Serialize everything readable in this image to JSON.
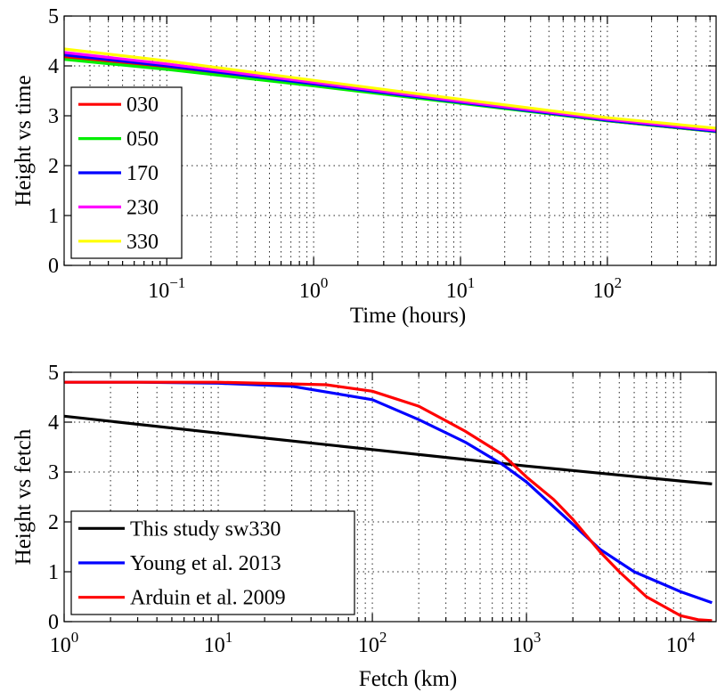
{
  "chart_data": [
    {
      "type": "line",
      "title": "",
      "xlabel": "Time (hours)",
      "ylabel": "Height vs time",
      "xscale": "log",
      "xlim": [
        0.02,
        550
      ],
      "ylim": [
        0,
        5
      ],
      "grid": true,
      "legend_position": "bottom-left",
      "x_ticks": [
        0.1,
        1,
        10,
        100
      ],
      "x_tick_labels": [
        {
          "base": "10",
          "exp": "−1"
        },
        {
          "base": "10",
          "exp": "0"
        },
        {
          "base": "10",
          "exp": "1"
        },
        {
          "base": "10",
          "exp": "2"
        }
      ],
      "y_ticks": [
        0,
        1,
        2,
        3,
        4,
        5
      ],
      "y_tick_labels": [
        "0",
        "1",
        "2",
        "3",
        "4",
        "5"
      ],
      "series": [
        {
          "name": "030",
          "color": "#ff0000",
          "x": [
            0.02,
            0.1,
            1,
            10,
            100,
            550
          ],
          "y": [
            4.18,
            3.97,
            3.62,
            3.26,
            2.9,
            2.68
          ]
        },
        {
          "name": "050",
          "color": "#00ee00",
          "x": [
            0.02,
            0.1,
            1,
            10,
            100,
            550
          ],
          "y": [
            4.13,
            3.93,
            3.6,
            3.25,
            2.9,
            2.68
          ]
        },
        {
          "name": "170",
          "color": "#0000ff",
          "x": [
            0.02,
            0.1,
            1,
            10,
            100,
            550
          ],
          "y": [
            4.22,
            4.0,
            3.64,
            3.27,
            2.91,
            2.69
          ]
        },
        {
          "name": "230",
          "color": "#ff00ff",
          "x": [
            0.02,
            0.1,
            1,
            10,
            100,
            550
          ],
          "y": [
            4.27,
            4.04,
            3.67,
            3.29,
            2.93,
            2.71
          ]
        },
        {
          "name": "330",
          "color": "#ffff00",
          "x": [
            0.02,
            0.1,
            1,
            10,
            100,
            550
          ],
          "y": [
            4.34,
            4.1,
            3.71,
            3.33,
            2.96,
            2.75
          ]
        }
      ]
    },
    {
      "type": "line",
      "title": "",
      "xlabel": "Fetch (km)",
      "ylabel": "Height vs fetch",
      "xscale": "log",
      "xlim": [
        1,
        17000
      ],
      "ylim": [
        0,
        5
      ],
      "grid": true,
      "legend_position": "bottom-left",
      "x_ticks": [
        1,
        10,
        100,
        1000,
        10000
      ],
      "x_tick_labels": [
        {
          "base": "10",
          "exp": "0"
        },
        {
          "base": "10",
          "exp": "1"
        },
        {
          "base": "10",
          "exp": "2"
        },
        {
          "base": "10",
          "exp": "3"
        },
        {
          "base": "10",
          "exp": "4"
        }
      ],
      "y_ticks": [
        0,
        1,
        2,
        3,
        4,
        5
      ],
      "y_tick_labels": [
        "0",
        "1",
        "2",
        "3",
        "4",
        "5"
      ],
      "series": [
        {
          "name": "This study sw330",
          "color": "#000000",
          "x": [
            1,
            10,
            100,
            1000,
            10000,
            16000
          ],
          "y": [
            4.12,
            3.78,
            3.45,
            3.12,
            2.82,
            2.76
          ]
        },
        {
          "name": "Young et al. 2013",
          "color": "#0000ff",
          "x": [
            1,
            3,
            10,
            30,
            100,
            200,
            400,
            700,
            1000,
            2000,
            3000,
            5000,
            10000,
            16000
          ],
          "y": [
            4.8,
            4.8,
            4.78,
            4.72,
            4.45,
            4.05,
            3.6,
            3.15,
            2.8,
            1.95,
            1.45,
            1.0,
            0.6,
            0.38
          ]
        },
        {
          "name": "Arduin et al. 2009",
          "color": "#ff0000",
          "x": [
            1,
            10,
            50,
            100,
            200,
            400,
            700,
            1000,
            1500,
            2000,
            3000,
            4000,
            6000,
            10000,
            13000,
            16000
          ],
          "y": [
            4.8,
            4.8,
            4.75,
            4.62,
            4.32,
            3.82,
            3.35,
            2.9,
            2.45,
            2.05,
            1.4,
            1.0,
            0.5,
            0.12,
            0.04,
            0.02
          ]
        }
      ]
    }
  ]
}
